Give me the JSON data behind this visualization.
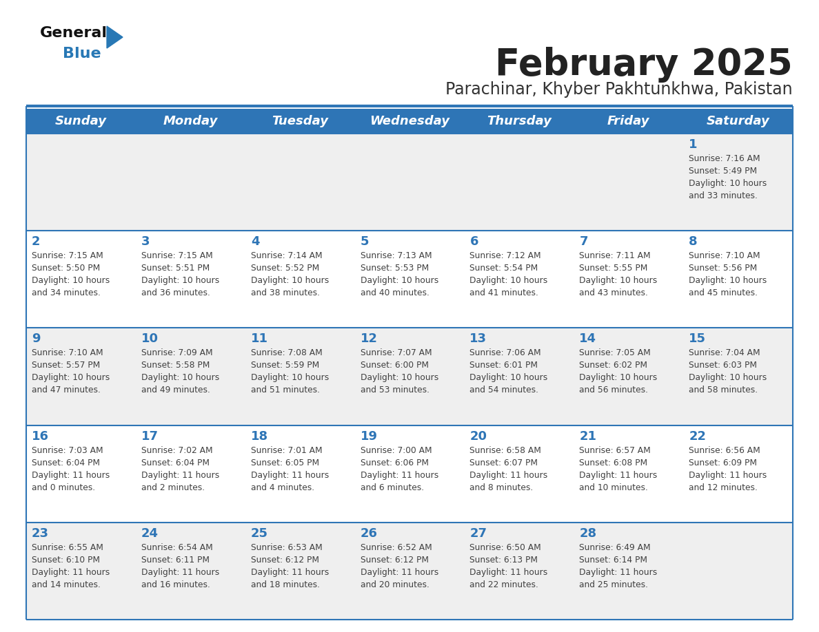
{
  "title": "February 2025",
  "subtitle": "Parachinar, Khyber Pakhtunkhwa, Pakistan",
  "days_of_week": [
    "Sunday",
    "Monday",
    "Tuesday",
    "Wednesday",
    "Thursday",
    "Friday",
    "Saturday"
  ],
  "header_bg": "#2E75B6",
  "header_text": "#FFFFFF",
  "row_bg_odd": "#EFEFEF",
  "row_bg_even": "#FFFFFF",
  "separator_color": "#2E75B6",
  "day_number_color": "#2E75B6",
  "cell_text_color": "#404040",
  "title_color": "#222222",
  "subtitle_color": "#333333",
  "calendar_data": [
    [
      null,
      null,
      null,
      null,
      null,
      null,
      {
        "day": 1,
        "sunrise": "7:16 AM",
        "sunset": "5:49 PM",
        "daylight_line1": "10 hours",
        "daylight_line2": "and 33 minutes."
      }
    ],
    [
      {
        "day": 2,
        "sunrise": "7:15 AM",
        "sunset": "5:50 PM",
        "daylight_line1": "10 hours",
        "daylight_line2": "and 34 minutes."
      },
      {
        "day": 3,
        "sunrise": "7:15 AM",
        "sunset": "5:51 PM",
        "daylight_line1": "10 hours",
        "daylight_line2": "and 36 minutes."
      },
      {
        "day": 4,
        "sunrise": "7:14 AM",
        "sunset": "5:52 PM",
        "daylight_line1": "10 hours",
        "daylight_line2": "and 38 minutes."
      },
      {
        "day": 5,
        "sunrise": "7:13 AM",
        "sunset": "5:53 PM",
        "daylight_line1": "10 hours",
        "daylight_line2": "and 40 minutes."
      },
      {
        "day": 6,
        "sunrise": "7:12 AM",
        "sunset": "5:54 PM",
        "daylight_line1": "10 hours",
        "daylight_line2": "and 41 minutes."
      },
      {
        "day": 7,
        "sunrise": "7:11 AM",
        "sunset": "5:55 PM",
        "daylight_line1": "10 hours",
        "daylight_line2": "and 43 minutes."
      },
      {
        "day": 8,
        "sunrise": "7:10 AM",
        "sunset": "5:56 PM",
        "daylight_line1": "10 hours",
        "daylight_line2": "and 45 minutes."
      }
    ],
    [
      {
        "day": 9,
        "sunrise": "7:10 AM",
        "sunset": "5:57 PM",
        "daylight_line1": "10 hours",
        "daylight_line2": "and 47 minutes."
      },
      {
        "day": 10,
        "sunrise": "7:09 AM",
        "sunset": "5:58 PM",
        "daylight_line1": "10 hours",
        "daylight_line2": "and 49 minutes."
      },
      {
        "day": 11,
        "sunrise": "7:08 AM",
        "sunset": "5:59 PM",
        "daylight_line1": "10 hours",
        "daylight_line2": "and 51 minutes."
      },
      {
        "day": 12,
        "sunrise": "7:07 AM",
        "sunset": "6:00 PM",
        "daylight_line1": "10 hours",
        "daylight_line2": "and 53 minutes."
      },
      {
        "day": 13,
        "sunrise": "7:06 AM",
        "sunset": "6:01 PM",
        "daylight_line1": "10 hours",
        "daylight_line2": "and 54 minutes."
      },
      {
        "day": 14,
        "sunrise": "7:05 AM",
        "sunset": "6:02 PM",
        "daylight_line1": "10 hours",
        "daylight_line2": "and 56 minutes."
      },
      {
        "day": 15,
        "sunrise": "7:04 AM",
        "sunset": "6:03 PM",
        "daylight_line1": "10 hours",
        "daylight_line2": "and 58 minutes."
      }
    ],
    [
      {
        "day": 16,
        "sunrise": "7:03 AM",
        "sunset": "6:04 PM",
        "daylight_line1": "11 hours",
        "daylight_line2": "and 0 minutes."
      },
      {
        "day": 17,
        "sunrise": "7:02 AM",
        "sunset": "6:04 PM",
        "daylight_line1": "11 hours",
        "daylight_line2": "and 2 minutes."
      },
      {
        "day": 18,
        "sunrise": "7:01 AM",
        "sunset": "6:05 PM",
        "daylight_line1": "11 hours",
        "daylight_line2": "and 4 minutes."
      },
      {
        "day": 19,
        "sunrise": "7:00 AM",
        "sunset": "6:06 PM",
        "daylight_line1": "11 hours",
        "daylight_line2": "and 6 minutes."
      },
      {
        "day": 20,
        "sunrise": "6:58 AM",
        "sunset": "6:07 PM",
        "daylight_line1": "11 hours",
        "daylight_line2": "and 8 minutes."
      },
      {
        "day": 21,
        "sunrise": "6:57 AM",
        "sunset": "6:08 PM",
        "daylight_line1": "11 hours",
        "daylight_line2": "and 10 minutes."
      },
      {
        "day": 22,
        "sunrise": "6:56 AM",
        "sunset": "6:09 PM",
        "daylight_line1": "11 hours",
        "daylight_line2": "and 12 minutes."
      }
    ],
    [
      {
        "day": 23,
        "sunrise": "6:55 AM",
        "sunset": "6:10 PM",
        "daylight_line1": "11 hours",
        "daylight_line2": "and 14 minutes."
      },
      {
        "day": 24,
        "sunrise": "6:54 AM",
        "sunset": "6:11 PM",
        "daylight_line1": "11 hours",
        "daylight_line2": "and 16 minutes."
      },
      {
        "day": 25,
        "sunrise": "6:53 AM",
        "sunset": "6:12 PM",
        "daylight_line1": "11 hours",
        "daylight_line2": "and 18 minutes."
      },
      {
        "day": 26,
        "sunrise": "6:52 AM",
        "sunset": "6:12 PM",
        "daylight_line1": "11 hours",
        "daylight_line2": "and 20 minutes."
      },
      {
        "day": 27,
        "sunrise": "6:50 AM",
        "sunset": "6:13 PM",
        "daylight_line1": "11 hours",
        "daylight_line2": "and 22 minutes."
      },
      {
        "day": 28,
        "sunrise": "6:49 AM",
        "sunset": "6:14 PM",
        "daylight_line1": "11 hours",
        "daylight_line2": "and 25 minutes."
      },
      null
    ]
  ]
}
